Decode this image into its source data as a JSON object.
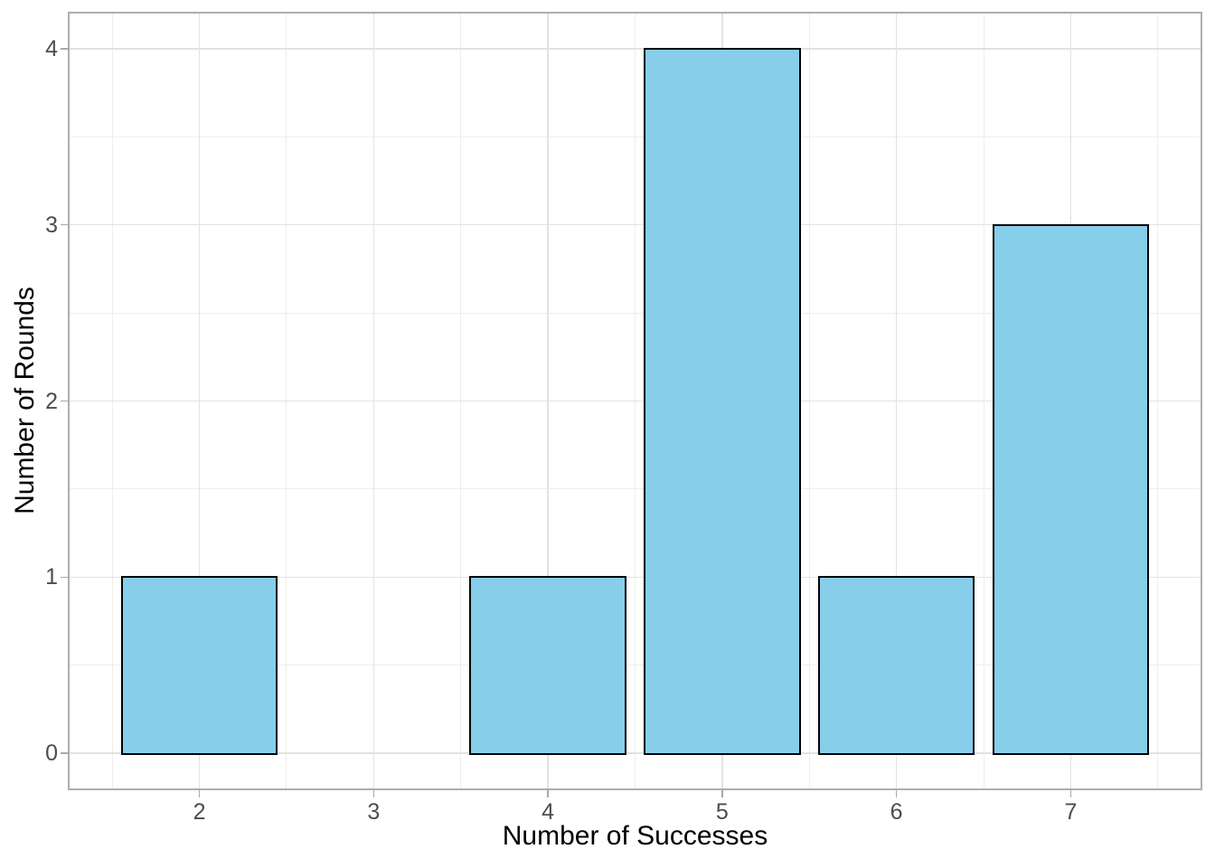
{
  "chart_data": {
    "type": "bar",
    "title": "",
    "xlabel": "Number of Successes",
    "ylabel": "Number of Rounds",
    "categories": [
      2,
      3,
      4,
      5,
      6,
      7
    ],
    "values": [
      1,
      0,
      1,
      4,
      1,
      3
    ],
    "x_tick_labels": [
      "2",
      "3",
      "4",
      "5",
      "6",
      "7"
    ],
    "y_ticks": [
      0,
      1,
      2,
      3,
      4
    ],
    "y_tick_labels": [
      "0",
      "1",
      "2",
      "3",
      "4"
    ],
    "xlim": [
      1.255,
      7.745
    ],
    "ylim": [
      -0.2,
      4.2
    ],
    "bar_width": 0.9,
    "grid": {
      "major": true,
      "minor": true,
      "minor_offset": 0.5
    },
    "legend_position": "none",
    "colors": {
      "background": "#ffffff",
      "bar_fill": "#87CEEB",
      "bar_stroke": "#000000",
      "panel_border": "#aeaeae",
      "grid_major": "#e2e2e2",
      "grid_minor": "#ededed",
      "tick_mark": "#a9a9a9",
      "tick_label": "#4d4d4d",
      "axis_title": "#000000"
    }
  }
}
